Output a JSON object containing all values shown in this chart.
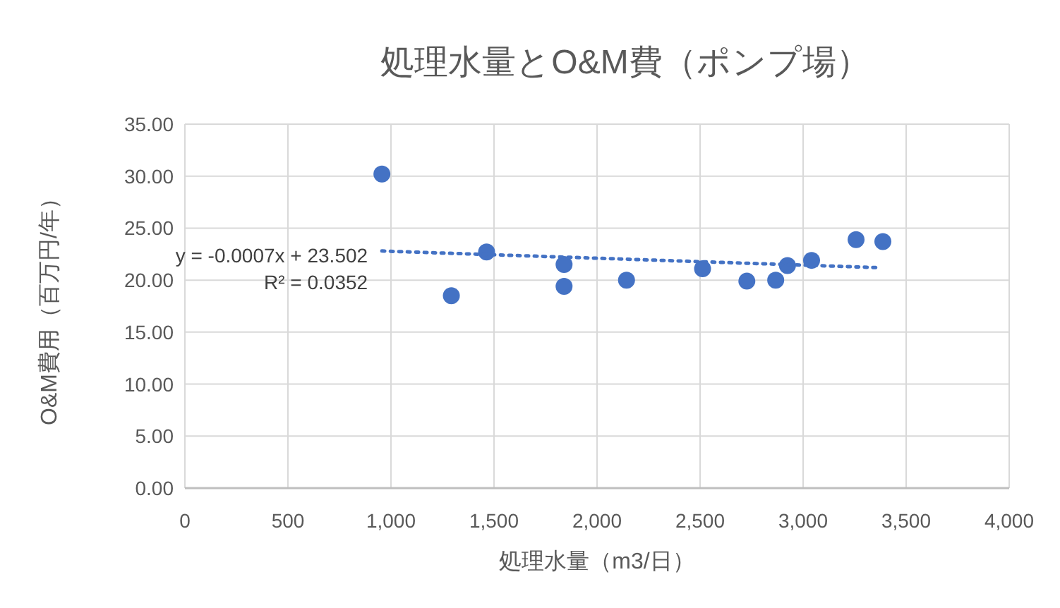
{
  "chart_data": {
    "type": "scatter",
    "title": "処理水量とO&M費（ポンプ場）",
    "xlabel": "処理水量（m3/日）",
    "ylabel": "O&M費用（百万円/年）",
    "series": [
      {
        "color": "#4472c4",
        "marker": "circle",
        "x": [
          956,
          1293,
          1464,
          1840,
          1840,
          2143,
          2512,
          2727,
          2867,
          2924,
          3041,
          3257,
          3387
        ],
        "values": [
          30.2,
          18.5,
          22.7,
          21.5,
          19.4,
          20.0,
          21.1,
          19.9,
          20.0,
          21.4,
          21.9,
          23.9,
          23.7
        ]
      },
      {
        "type": "line",
        "color": "#4472c4",
        "line_style": "dotted",
        "x": [
          956,
          3365
        ],
        "values": [
          22.8,
          21.2
        ]
      }
    ],
    "annotations": [
      {
        "text": "y = -0.0007x + 23.502",
        "x": 956,
        "y": 22.8
      },
      "R² = 0.0352"
    ],
    "xlim": [
      0,
      4000
    ],
    "xticks": [
      0,
      500,
      {
        "value": 1000,
        "label": "1,000"
      },
      {
        "value": 1500,
        "label": "1,500"
      },
      {
        "value": 2000,
        "label": "2,000"
      },
      {
        "value": 2500,
        "label": "2,500"
      },
      {
        "value": 3000,
        "label": "3,000"
      },
      {
        "value": 3500,
        "label": "3,500"
      },
      {
        "value": 4000,
        "label": "4,000"
      }
    ],
    "ylim": [
      0,
      35
    ],
    "yticks": [
      {
        "value": 0,
        "label": "0.00"
      },
      {
        "value": 5,
        "label": "5.00"
      },
      {
        "value": 10,
        "label": "10.00"
      },
      {
        "value": 15,
        "label": "15.00"
      },
      {
        "value": 20,
        "label": "20.00"
      },
      {
        "value": 25,
        "label": "25.00"
      },
      {
        "value": 30,
        "label": "30.00"
      },
      {
        "value": 35,
        "label": "35.00"
      }
    ],
    "grid": true
  }
}
